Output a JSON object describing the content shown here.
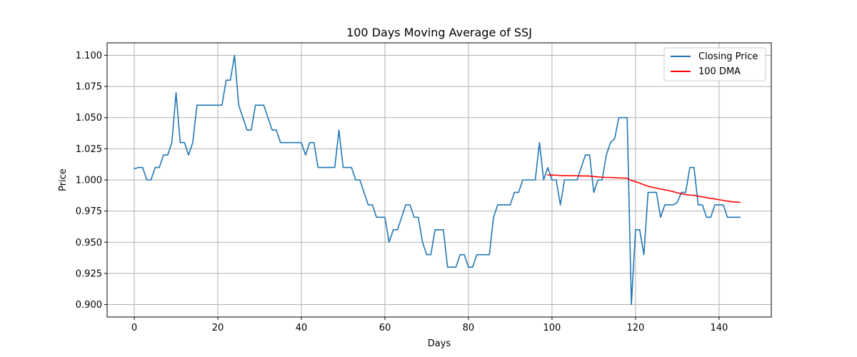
{
  "chart_data": {
    "type": "line",
    "title": "100 Days Moving Average of SSJ",
    "xlabel": "Days",
    "ylabel": "Price",
    "xlim": [
      -6.5,
      152.5
    ],
    "ylim": [
      0.89,
      1.11
    ],
    "xticks": [
      0,
      20,
      40,
      60,
      80,
      100,
      120,
      140
    ],
    "yticks": [
      0.9,
      0.925,
      0.95,
      0.975,
      1.0,
      1.025,
      1.05,
      1.075,
      1.1
    ],
    "ytick_labels": [
      "0.900",
      "0.925",
      "0.950",
      "0.975",
      "1.000",
      "1.025",
      "1.050",
      "1.075",
      "1.100"
    ],
    "grid": true,
    "legend_position": "top-right",
    "series": [
      {
        "name": "Closing Price",
        "color": "#1f77b4",
        "x": [
          0,
          1,
          2,
          3,
          4,
          5,
          6,
          7,
          8,
          9,
          10,
          11,
          12,
          13,
          14,
          15,
          16,
          17,
          18,
          19,
          20,
          21,
          22,
          23,
          24,
          25,
          26,
          27,
          28,
          29,
          30,
          31,
          32,
          33,
          34,
          35,
          36,
          37,
          38,
          39,
          40,
          41,
          42,
          43,
          44,
          45,
          46,
          47,
          48,
          49,
          50,
          51,
          52,
          53,
          54,
          55,
          56,
          57,
          58,
          59,
          60,
          61,
          62,
          63,
          64,
          65,
          66,
          67,
          68,
          69,
          70,
          71,
          72,
          73,
          74,
          75,
          76,
          77,
          78,
          79,
          80,
          81,
          82,
          83,
          84,
          85,
          86,
          87,
          88,
          89,
          90,
          91,
          92,
          93,
          94,
          95,
          96,
          97,
          98,
          99,
          100,
          101,
          102,
          103,
          104,
          105,
          106,
          107,
          108,
          109,
          110,
          111,
          112,
          113,
          114,
          115,
          116,
          117,
          118,
          119,
          120,
          121,
          122,
          123,
          124,
          125,
          126,
          127,
          128,
          129,
          130,
          131,
          132,
          133,
          134,
          135,
          136,
          137,
          138,
          139,
          140,
          141,
          142,
          143,
          144,
          145
        ],
        "values": [
          1.009,
          1.01,
          1.01,
          1.0,
          1.0,
          1.01,
          1.01,
          1.02,
          1.02,
          1.03,
          1.07,
          1.03,
          1.03,
          1.02,
          1.03,
          1.06,
          1.06,
          1.06,
          1.06,
          1.06,
          1.06,
          1.06,
          1.08,
          1.08,
          1.1,
          1.06,
          1.05,
          1.04,
          1.04,
          1.06,
          1.06,
          1.06,
          1.05,
          1.04,
          1.04,
          1.03,
          1.03,
          1.03,
          1.03,
          1.03,
          1.03,
          1.02,
          1.03,
          1.03,
          1.01,
          1.01,
          1.01,
          1.01,
          1.01,
          1.04,
          1.01,
          1.01,
          1.01,
          1.0,
          1.0,
          0.99,
          0.98,
          0.98,
          0.97,
          0.97,
          0.97,
          0.95,
          0.96,
          0.96,
          0.97,
          0.98,
          0.98,
          0.97,
          0.97,
          0.95,
          0.94,
          0.94,
          0.96,
          0.96,
          0.96,
          0.93,
          0.93,
          0.93,
          0.94,
          0.94,
          0.93,
          0.93,
          0.94,
          0.94,
          0.94,
          0.94,
          0.97,
          0.98,
          0.98,
          0.98,
          0.98,
          0.99,
          0.99,
          1.0,
          1.0,
          1.0,
          1.0,
          1.03,
          1.0,
          1.01,
          1.0,
          1.0,
          0.98,
          1.0,
          1.0,
          1.0,
          1.0,
          1.01,
          1.02,
          1.02,
          0.99,
          1.0,
          1.0,
          1.02,
          1.03,
          1.033,
          1.05,
          1.05,
          1.05,
          0.9,
          0.96,
          0.96,
          0.94,
          0.99,
          0.99,
          0.99,
          0.97,
          0.98,
          0.98,
          0.98,
          0.982,
          0.99,
          0.99,
          1.01,
          1.01,
          0.98,
          0.98,
          0.97,
          0.97,
          0.98,
          0.98,
          0.98,
          0.97,
          0.97,
          0.97,
          0.97
        ]
      },
      {
        "name": "100 DMA",
        "color": "#ff0000",
        "x": [
          99,
          100,
          101,
          102,
          103,
          104,
          105,
          106,
          107,
          108,
          109,
          110,
          111,
          112,
          113,
          114,
          115,
          116,
          117,
          118,
          119,
          120,
          121,
          122,
          123,
          124,
          125,
          126,
          127,
          128,
          129,
          130,
          131,
          132,
          133,
          134,
          135,
          136,
          137,
          138,
          139,
          140,
          141,
          142,
          143,
          144,
          145
        ],
        "values": [
          1.004,
          1.0039,
          1.0038,
          1.0035,
          1.0035,
          1.0034,
          1.0034,
          1.0033,
          1.0032,
          1.0032,
          1.0031,
          1.0027,
          1.0024,
          1.0021,
          1.002,
          1.002,
          1.0018,
          1.0016,
          1.0015,
          1.0014,
          0.9996,
          0.9986,
          0.9974,
          0.9961,
          0.995,
          0.9941,
          0.9934,
          0.9927,
          0.9921,
          0.9914,
          0.9906,
          0.9897,
          0.9889,
          0.9883,
          0.9879,
          0.9876,
          0.987,
          0.9864,
          0.9858,
          0.9852,
          0.9847,
          0.9841,
          0.9836,
          0.983,
          0.9825,
          0.9823,
          0.982
        ]
      }
    ]
  }
}
